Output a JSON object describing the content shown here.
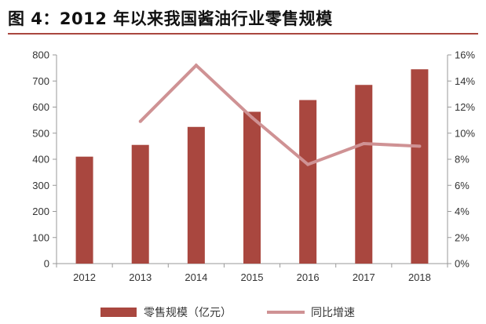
{
  "figure_title": "图 4：2012 年以来我国酱油行业零售规模",
  "chart_data": {
    "type": "bar+line",
    "title": "图 4：2012 年以来我国酱油行业零售规模",
    "categories": [
      "2012",
      "2013",
      "2014",
      "2015",
      "2016",
      "2017",
      "2018"
    ],
    "series": [
      {
        "name": "零售规模（亿元）",
        "type": "bar",
        "axis": "left",
        "color": "#a9473f",
        "values": [
          410,
          455,
          524,
          582,
          627,
          685,
          745
        ]
      },
      {
        "name": "同比增速",
        "type": "line",
        "axis": "right",
        "color": "#cf9294",
        "values": [
          null,
          10.9,
          15.2,
          11.2,
          7.6,
          9.2,
          9.0
        ]
      }
    ],
    "left_axis": {
      "range": [
        0,
        800
      ],
      "ticks": [
        "0",
        "100",
        "200",
        "300",
        "400",
        "500",
        "600",
        "700",
        "800"
      ]
    },
    "right_axis": {
      "range": [
        0,
        16
      ],
      "ticks": [
        "0%",
        "2%",
        "4%",
        "6%",
        "8%",
        "10%",
        "12%",
        "14%",
        "16%"
      ]
    },
    "xlabel": "",
    "ylabel": "",
    "grid": false,
    "legend_position": "bottom"
  }
}
